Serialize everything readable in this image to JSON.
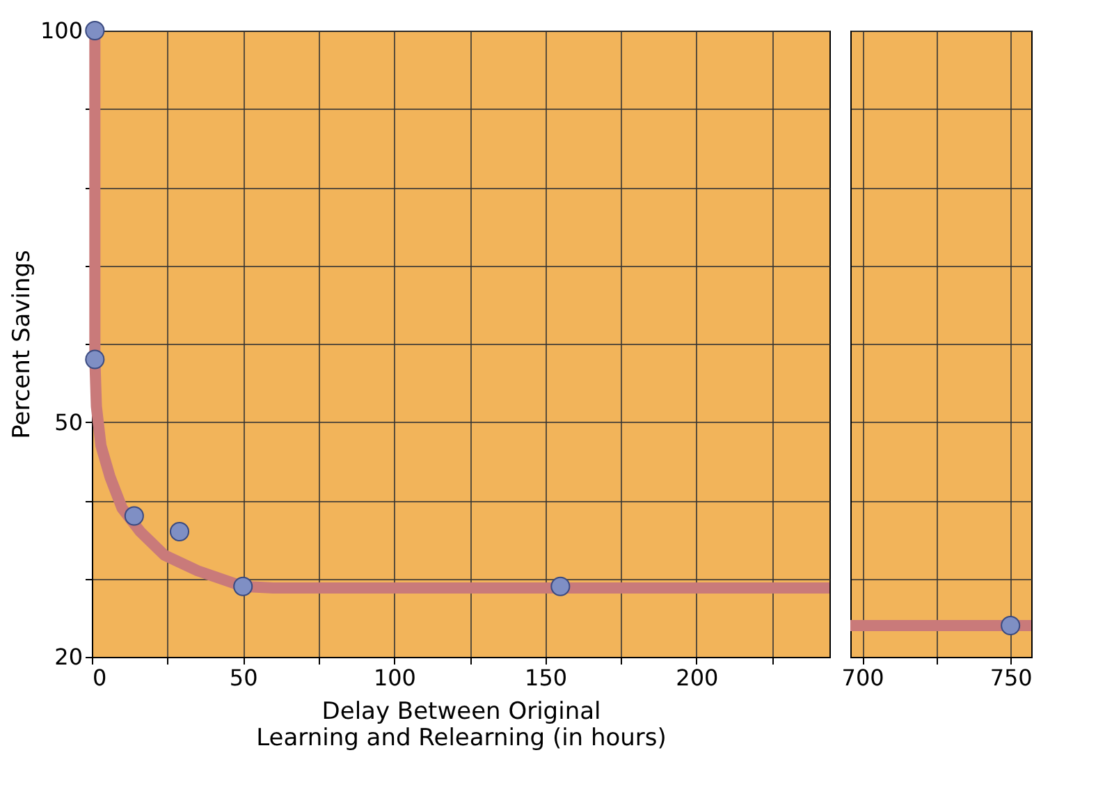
{
  "chart_data": [
    {
      "type": "line",
      "ylabel": "Percent Savings",
      "xlabel": "Delay Between Original\nLearning and Relearning (in hours)",
      "xlim": [
        0,
        244
      ],
      "xticks": [
        0,
        {
          "value": 25,
          "label": null
        },
        50,
        {
          "value": 75,
          "label": null
        },
        100,
        {
          "value": 125,
          "label": null
        },
        150,
        {
          "value": 175,
          "label": null
        },
        200,
        {
          "value": 225,
          "label": null
        }
      ],
      "ylim": [
        20,
        100
      ],
      "yticks": [
        20,
        {
          "value": 30,
          "label": null
        },
        {
          "value": 40,
          "label": null
        },
        50,
        {
          "value": 60,
          "label": null
        },
        {
          "value": 70,
          "label": null
        },
        {
          "value": 80,
          "label": null
        },
        {
          "value": 90,
          "label": null
        },
        100
      ],
      "grid": true,
      "series": [
        {
          "color": "#c97a7a",
          "x": [
            1,
            1,
            1.5,
            3,
            6,
            10,
            16,
            24,
            35,
            50,
            60,
            244
          ],
          "values": [
            100,
            58,
            52,
            47,
            43,
            39,
            36,
            33,
            31,
            29,
            28.8,
            28.8
          ]
        },
        {
          "type": "scatter",
          "color": "#7f8fc4",
          "x": [
            1,
            1,
            14,
            29,
            50,
            155
          ],
          "values": [
            100,
            58,
            38,
            36,
            29,
            29
          ]
        }
      ]
    },
    {
      "type": "line",
      "tick_labels": "x",
      "xlim": [
        696,
        757
      ],
      "xticks": [
        700,
        {
          "value": 725,
          "label": null
        },
        750
      ],
      "ylim": [
        20,
        100
      ],
      "yticks": [
        20,
        {
          "value": 30,
          "label": null
        },
        {
          "value": 40,
          "label": null
        },
        50,
        {
          "value": 60,
          "label": null
        },
        {
          "value": 70,
          "label": null
        },
        {
          "value": 80,
          "label": null
        },
        {
          "value": 90,
          "label": null
        },
        100
      ],
      "grid": true,
      "series": [
        {
          "color": "#c97a7a",
          "x": [
            696,
            757
          ],
          "values": [
            24,
            24
          ]
        },
        {
          "type": "scatter",
          "color": "#7f8fc4",
          "x": [
            750
          ],
          "values": [
            24
          ]
        }
      ]
    }
  ]
}
